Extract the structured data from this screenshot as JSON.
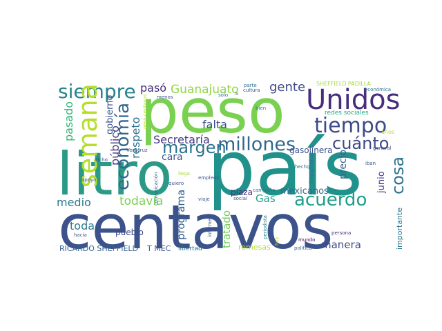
{
  "words": [
    {
      "text": "peso",
      "color": "#7ad151"
    },
    {
      "text": "país",
      "color": "#21918c"
    },
    {
      "text": "litro",
      "color": "#2a9a87"
    },
    {
      "text": "centavos",
      "color": "#3b528b"
    },
    {
      "text": "Unidos",
      "color": "#472d7b"
    },
    {
      "text": "siempre",
      "color": "#26828e"
    },
    {
      "text": "tiempo",
      "color": "#3e4989"
    },
    {
      "text": "semana",
      "color": "#b5de2b"
    },
    {
      "text": "millones",
      "color": "#31688e"
    },
    {
      "text": "margen",
      "color": "#2c728e"
    },
    {
      "text": "acuerdo",
      "color": "#1f9e89"
    },
    {
      "text": "cuánto",
      "color": "#3e4989"
    },
    {
      "text": "economía",
      "color": "#31688e"
    },
    {
      "text": "cosa",
      "color": "#2c728e"
    },
    {
      "text": "Secretaría",
      "color": "#443983"
    },
    {
      "text": "Guanajuato",
      "color": "#90d743"
    },
    {
      "text": "gente",
      "color": "#3e4989"
    },
    {
      "text": "pasó",
      "color": "#472d7b"
    },
    {
      "text": "falta",
      "color": "#3b528b"
    },
    {
      "text": "respeto",
      "color": "#2c728e"
    },
    {
      "text": "público",
      "color": "#443983"
    },
    {
      "text": "gobierno",
      "color": "#3b528b"
    },
    {
      "text": "pasado",
      "color": "#35b779"
    },
    {
      "text": "todavía",
      "color": "#7ad151"
    },
    {
      "text": "medio",
      "color": "#2a788e"
    },
    {
      "text": "programa",
      "color": "#35608d"
    },
    {
      "text": "cara",
      "color": "#3b528b"
    },
    {
      "text": "toda",
      "color": "#2a788e"
    },
    {
      "text": "tratado",
      "color": "#6ece58"
    },
    {
      "text": "Gas",
      "color": "#1fa187"
    },
    {
      "text": "mexicanos",
      "color": "#31688e"
    },
    {
      "text": "plaza",
      "color": "#472d7b"
    },
    {
      "text": "junio",
      "color": "#443983"
    },
    {
      "text": "precio",
      "color": "#35608d"
    },
    {
      "text": "gasolinera",
      "color": "#3b528b"
    },
    {
      "text": "manera",
      "color": "#3e4989"
    },
    {
      "text": "pueblo",
      "color": "#3e4989"
    },
    {
      "text": "importante",
      "color": "#2a788e"
    },
    {
      "text": "RICARDO SHEFFIELD",
      "color": "#35608d"
    },
    {
      "text": "T MEC",
      "color": "#3b528b"
    },
    {
      "text": "remesas",
      "color": "#b5de2b"
    },
    {
      "text": "libertad",
      "color": "#2c728e"
    },
    {
      "text": "redes sociales",
      "color": "#22a884"
    },
    {
      "text": "SHEFFIELD PADILLA",
      "color": "#a5db36"
    },
    {
      "text": "económica",
      "color": "#2c728e"
    },
    {
      "text": "años",
      "color": "#b5de2b"
    },
    {
      "text": "general",
      "color": "#3b528b"
    },
    {
      "text": "iban",
      "color": "#3b528b"
    },
    {
      "text": "imagínense",
      "color": "#2c728e"
    },
    {
      "text": "hecho",
      "color": "#2c728e"
    },
    {
      "text": "persona",
      "color": "#472d7b"
    },
    {
      "text": "mundo",
      "color": "#440154"
    },
    {
      "text": "política",
      "color": "#31688e"
    },
    {
      "text": "hoy",
      "color": "#d2e21b"
    },
    {
      "text": "periodista",
      "color": "#26828e"
    },
    {
      "text": "campaña",
      "color": "#2c728e"
    },
    {
      "text": "social",
      "color": "#3b528b"
    },
    {
      "text": "viaje",
      "color": "#3b528b"
    },
    {
      "text": "informe",
      "color": "#3b528b"
    },
    {
      "text": "empleos",
      "color": "#3b528b"
    },
    {
      "text": "ir",
      "color": "#3e4989"
    },
    {
      "text": "sólo",
      "color": "#2c728e"
    },
    {
      "text": "parte",
      "color": "#2c728e"
    },
    {
      "text": "cultura",
      "color": "#3b528b"
    },
    {
      "text": "bien",
      "color": "#2c728e"
    },
    {
      "text": "menos",
      "color": "#3b528b"
    },
    {
      "text": "peso centavos",
      "color": "#b5de2b"
    },
    {
      "text": "Veracruz",
      "color": "#3b528b"
    },
    {
      "text": "dicho",
      "color": "#3e4989"
    },
    {
      "text": "apoyo",
      "color": "#3b528b"
    },
    {
      "text": "dato",
      "color": "#3b528b"
    },
    {
      "text": "hacia",
      "color": "#3b528b"
    },
    {
      "text": "comunicación",
      "color": "#35608d"
    },
    {
      "text": "llega",
      "color": "#a5db36"
    },
    {
      "text": "quiero",
      "color": "#3b528b"
    }
  ]
}
